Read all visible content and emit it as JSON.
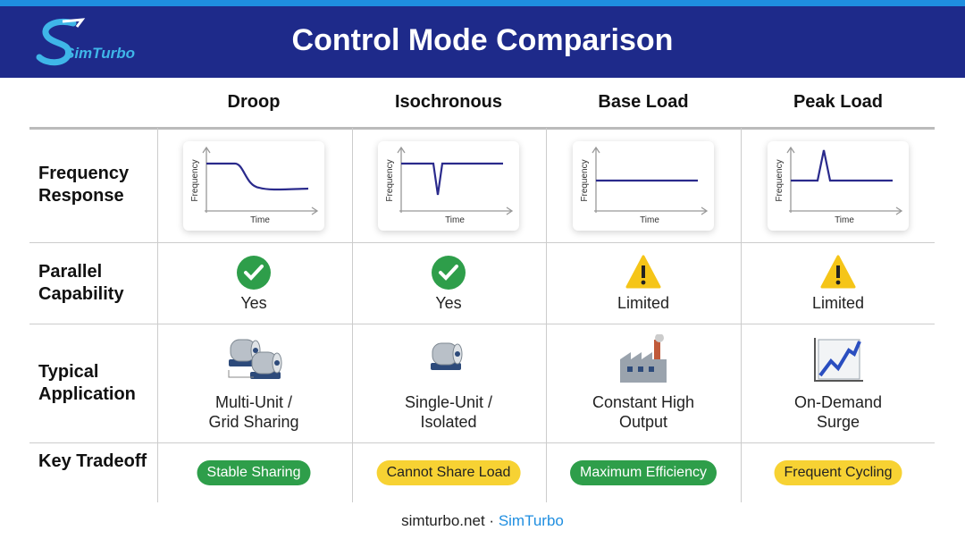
{
  "header": {
    "logo": "SimTurbo",
    "title": "Control Mode Comparison"
  },
  "table": {
    "columns": [
      "Droop",
      "Isochronous",
      "Base Load",
      "Peak Load"
    ],
    "rows": [
      {
        "label": "Frequency Response",
        "cells": [
          {
            "y_axis": "Frequency",
            "x_axis": "Time"
          },
          {
            "y_axis": "Frequency",
            "x_axis": "Time"
          },
          {
            "y_axis": "Frequency",
            "x_axis": "Time"
          },
          {
            "y_axis": "Frequency",
            "x_axis": "Time"
          }
        ]
      },
      {
        "label": "Parallel Capability",
        "cells": [
          {
            "text": "Yes",
            "icon": "check"
          },
          {
            "text": "Yes",
            "icon": "check"
          },
          {
            "text": "Limited",
            "icon": "warning"
          },
          {
            "text": "Limited",
            "icon": "warning"
          }
        ]
      },
      {
        "label": "Typical Application",
        "cells": [
          {
            "lines": [
              "Multi-Unit /",
              "Grid Sharing"
            ],
            "icon": "generators"
          },
          {
            "lines": [
              "Single-Unit /",
              "Isolated"
            ],
            "icon": "generator"
          },
          {
            "lines": [
              "Constant High",
              "Output"
            ],
            "icon": "factory"
          },
          {
            "lines": [
              "On-Demand",
              "Surge"
            ],
            "icon": "surge"
          }
        ]
      },
      {
        "label": "Key Tradeoff",
        "cells": [
          {
            "text": "Stable Sharing",
            "color": "#2e9e4a"
          },
          {
            "text": "Cannot Share Load",
            "color": "#f7d233"
          },
          {
            "text": "Maximum Efficiency",
            "color": "#2e9e4a"
          },
          {
            "text": "Frequent Cycling",
            "color": "#f7d233"
          }
        ]
      }
    ]
  },
  "footer": {
    "site": "simturbo.net",
    "separator": "·",
    "brand": "SimTurbo"
  }
}
